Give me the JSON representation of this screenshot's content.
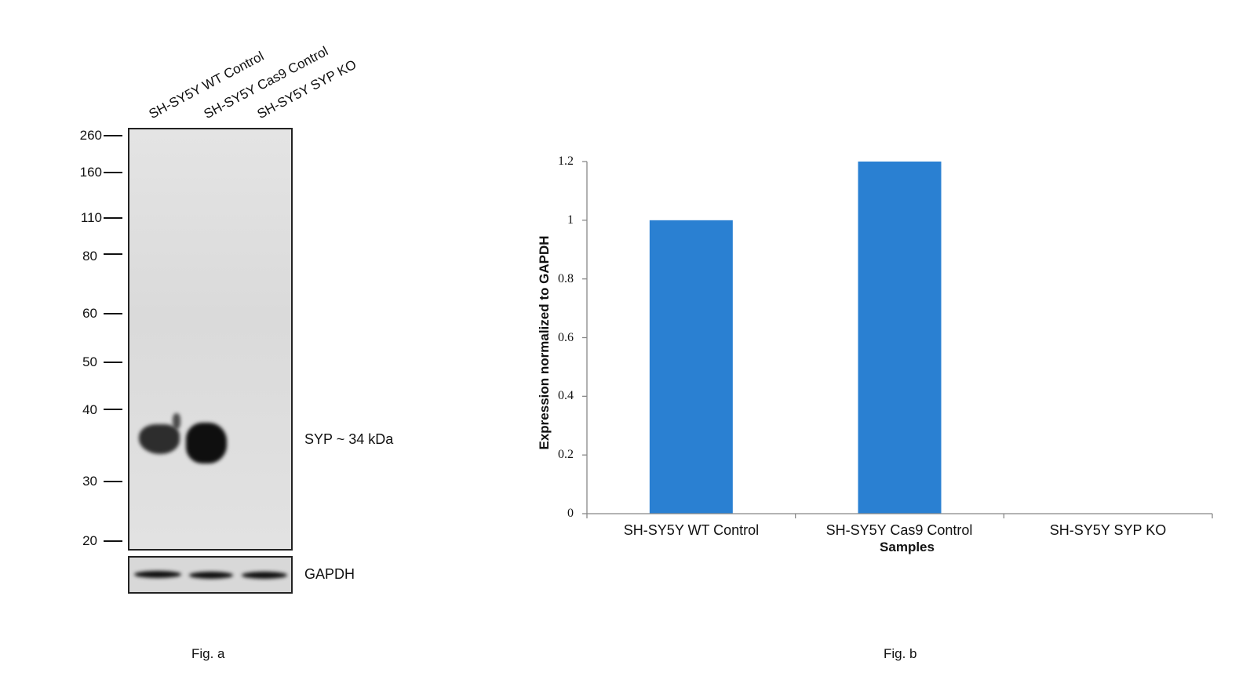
{
  "figure_a": {
    "lanes": [
      "SH-SY5Y WT Control",
      "SH-SY5Y Cas9 Control",
      "SH-SY5Y SYP KO"
    ],
    "mw_markers": [
      "260",
      "160",
      "110",
      "80",
      "60",
      "50",
      "40",
      "30",
      "20"
    ],
    "band_label": "SYP ~ 34 kDa",
    "loading_control_label": "GAPDH",
    "caption": "Fig. a"
  },
  "figure_b": {
    "caption": "Fig. b"
  },
  "chart_data": {
    "type": "bar",
    "categories": [
      "SH-SY5Y WT Control",
      "SH-SY5Y Cas9 Control",
      "SH-SY5Y SYP KO"
    ],
    "values": [
      1.0,
      1.2,
      0.0
    ],
    "xlabel": "Samples",
    "ylabel": "Expression  normalized to GAPDH",
    "ylim": [
      0,
      1.2
    ],
    "yticks": [
      "0",
      "0.2",
      "0.4",
      "0.6",
      "0.8",
      "1",
      "1.2"
    ],
    "bar_color": "#2a80d2",
    "grid": false,
    "legend": "none"
  }
}
